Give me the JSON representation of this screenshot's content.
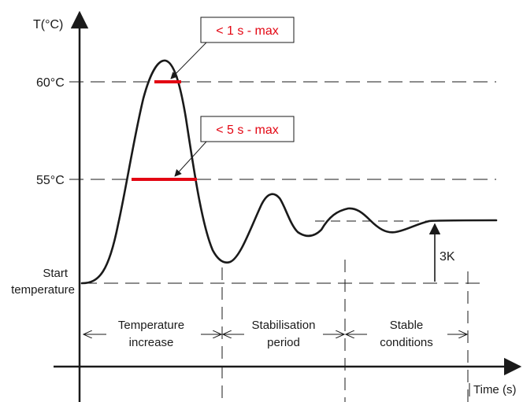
{
  "colors": {
    "line": "#1a1a1a",
    "accent": "#e30613",
    "background": "#ffffff"
  },
  "axes": {
    "y_label": "T(°C)",
    "x_label": "Time (s)"
  },
  "levels": {
    "level_60": "60°C",
    "level_55": "55°C",
    "start_line1": "Start",
    "start_line2": "temperature"
  },
  "annotations": {
    "max_1s": "< 1 s - max",
    "max_5s": "< 5 s - max",
    "tolerance": "3K"
  },
  "phases": [
    {
      "line1": "Temperature",
      "line2": "increase"
    },
    {
      "line1": "Stabilisation",
      "line2": "period"
    },
    {
      "line1": "Stable",
      "line2": "conditions"
    }
  ]
}
